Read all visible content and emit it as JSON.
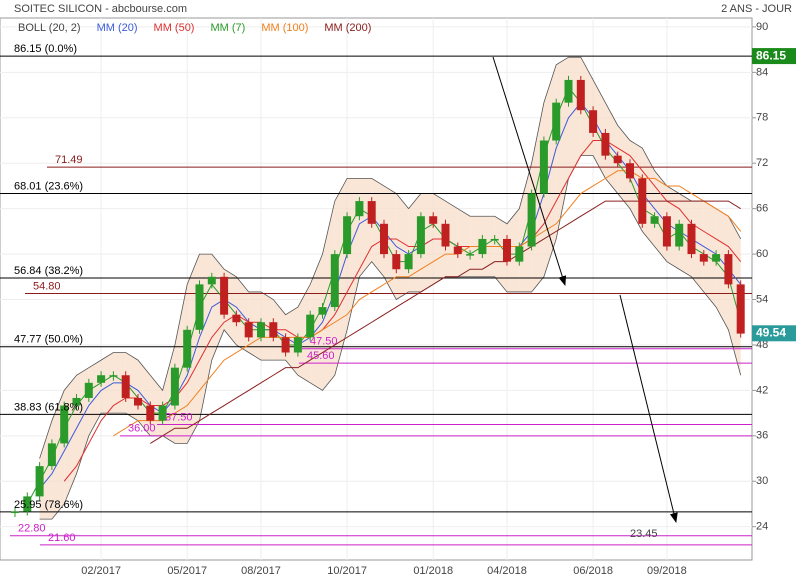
{
  "chart_data": {
    "type": "candlestick",
    "title": "SOITEC SILICON - abcbourse.com",
    "subtitle": "2 ANS - JOUR",
    "categories": [
      null,
      null,
      null,
      null,
      null,
      null,
      null,
      "02/2017",
      null,
      null,
      null,
      null,
      null,
      null,
      "05/2017",
      null,
      null,
      null,
      null,
      null,
      "08/2017",
      null,
      null,
      null,
      null,
      null,
      null,
      "10/2017",
      null,
      null,
      null,
      null,
      null,
      null,
      "01/2018",
      null,
      null,
      null,
      null,
      null,
      "04/2018",
      null,
      null,
      null,
      null,
      null,
      null,
      "06/2018",
      null,
      null,
      null,
      null,
      null,
      "09/2018",
      null,
      null,
      null,
      null,
      null,
      null
    ],
    "close": [
      26,
      28,
      32,
      35,
      40,
      41,
      43,
      44,
      44,
      41,
      40,
      38,
      40,
      45,
      50,
      56,
      57,
      52,
      51,
      49,
      51,
      49,
      47,
      49,
      52,
      53,
      60,
      65,
      67,
      64,
      60,
      58,
      60,
      65,
      64,
      61,
      60,
      60,
      62,
      62,
      59,
      61,
      68,
      75,
      80,
      83,
      79,
      76,
      73,
      72,
      70,
      64,
      65,
      61,
      64,
      60,
      59,
      60,
      56,
      49.5
    ],
    "bollinger": {
      "name": "BOLL (20, 2)",
      "color": "#555555",
      "upper": [
        null,
        null,
        33,
        38,
        42,
        44,
        45,
        46,
        47,
        47,
        46,
        44,
        42,
        48,
        56,
        60,
        60,
        58,
        57,
        55,
        55,
        54,
        52,
        53,
        56,
        60,
        67,
        70,
        70,
        70,
        69,
        68,
        66,
        68,
        68,
        67,
        66,
        65,
        65,
        65,
        64,
        66,
        72,
        80,
        85,
        86,
        86,
        83,
        80,
        77,
        75,
        74,
        71,
        69,
        68,
        67,
        67,
        66,
        65,
        62
      ],
      "lower": [
        null,
        null,
        25,
        25,
        27,
        31,
        36,
        39,
        39,
        39,
        38,
        36,
        36,
        35,
        35,
        38,
        46,
        50,
        48,
        47,
        46,
        46,
        46,
        44,
        43,
        42,
        44,
        50,
        57,
        59,
        57,
        54,
        55,
        55,
        56,
        57,
        57,
        57,
        57,
        57,
        55,
        55,
        55,
        57,
        62,
        70,
        73,
        73,
        70,
        68,
        66,
        63,
        61,
        59,
        58,
        57,
        55,
        53,
        50,
        44
      ]
    },
    "series": [
      {
        "name": "MM (20)",
        "color": "#3b5bdb",
        "values": [
          null,
          null,
          29,
          31,
          34,
          37,
          40,
          42,
          43,
          43,
          42,
          40,
          39,
          41,
          44,
          49,
          53,
          54,
          53,
          51,
          50,
          50,
          49,
          48,
          49,
          51,
          55,
          60,
          64,
          65,
          63,
          61,
          60,
          61,
          62,
          62,
          61,
          61,
          61,
          61,
          61,
          61,
          63,
          68,
          74,
          78,
          80,
          78,
          75,
          73,
          71,
          68,
          66,
          64,
          63,
          62,
          61,
          60,
          58,
          56
        ]
      },
      {
        "name": "MM (50)",
        "color": "#e03030",
        "values": [
          null,
          null,
          null,
          null,
          30,
          32,
          35,
          38,
          40,
          41,
          41,
          40,
          40,
          41,
          43,
          46,
          49,
          51,
          52,
          51,
          51,
          50,
          50,
          49,
          49,
          50,
          52,
          55,
          58,
          61,
          62,
          62,
          61,
          61,
          62,
          62,
          61,
          61,
          61,
          61,
          61,
          61,
          62,
          64,
          67,
          70,
          73,
          75,
          75,
          74,
          73,
          71,
          69,
          67,
          66,
          64,
          63,
          62,
          61,
          59
        ]
      },
      {
        "name": "MM (7)",
        "color": "#2a9a2a",
        "values": [
          null,
          27,
          30,
          33,
          37,
          40,
          42,
          43,
          44,
          43,
          41,
          39,
          39,
          42,
          47,
          53,
          56,
          54,
          52,
          50,
          50,
          50,
          48,
          48,
          50,
          53,
          58,
          63,
          66,
          65,
          62,
          59,
          59,
          63,
          64,
          62,
          61,
          60,
          61,
          62,
          60,
          60,
          66,
          73,
          78,
          82,
          80,
          77,
          74,
          72,
          70,
          66,
          65,
          62,
          63,
          61,
          60,
          59,
          57,
          51
        ]
      },
      {
        "name": "MM (100)",
        "color": "#f08020",
        "values": [
          null,
          null,
          null,
          null,
          null,
          null,
          null,
          null,
          36,
          37,
          38,
          38,
          38,
          39,
          40,
          42,
          44,
          46,
          47,
          48,
          49,
          49,
          49,
          49,
          49,
          50,
          51,
          52,
          54,
          55,
          56,
          57,
          57,
          58,
          59,
          60,
          60,
          61,
          61,
          61,
          61,
          61,
          62,
          63,
          64,
          66,
          68,
          69,
          70,
          71,
          71,
          70,
          70,
          69,
          69,
          68,
          67,
          66,
          65,
          63
        ]
      },
      {
        "name": "MM (200)",
        "color": "#8b2020",
        "values": [
          null,
          null,
          null,
          null,
          null,
          null,
          null,
          null,
          null,
          null,
          null,
          35,
          36,
          37,
          37,
          38,
          39,
          40,
          41,
          42,
          43,
          44,
          45,
          45,
          46,
          47,
          48,
          49,
          50,
          51,
          52,
          53,
          54,
          55,
          56,
          57,
          57,
          58,
          58,
          59,
          59,
          60,
          61,
          62,
          63,
          64,
          65,
          66,
          67,
          67,
          67,
          67,
          67,
          67,
          67,
          67,
          67,
          67,
          67,
          66
        ]
      }
    ],
    "up_color": "#2a9a2a",
    "down_color": "#c02020",
    "ylim": [
      19.6,
      92.5
    ],
    "yticks": [
      24,
      30,
      36,
      42,
      48,
      54,
      60,
      66,
      72,
      78,
      84,
      90
    ],
    "grid": true,
    "levels": [
      {
        "value": 86.15,
        "label": "86.15 (0.0%)",
        "color": "#000000"
      },
      {
        "value": 68.01,
        "label": "68.01 (23.6%)",
        "color": "#000000"
      },
      {
        "value": 56.84,
        "label": "56.84 (38.2%)",
        "color": "#000000"
      },
      {
        "value": 47.77,
        "label": "47.77 (50.0%)",
        "color": "#000000"
      },
      {
        "value": 38.83,
        "label": "38.83 (61.8%)",
        "color": "#000000"
      },
      {
        "value": 25.95,
        "label": "25.95 (78.6%)",
        "color": "#000000"
      },
      {
        "value": 71.49,
        "label": "71.49",
        "color": "#8b1a1a"
      },
      {
        "value": 54.8,
        "label": "54.80",
        "color": "#8b1a1a"
      },
      {
        "value": 47.5,
        "label": "47.50",
        "color": "#cc22cc"
      },
      {
        "value": 45.6,
        "label": "45.60",
        "color": "#cc22cc"
      },
      {
        "value": 37.5,
        "label": "37.50",
        "color": "#cc22cc"
      },
      {
        "value": 36,
        "label": "36.00",
        "color": "#cc22cc"
      },
      {
        "value": 22.8,
        "label": "22.80",
        "color": "#cc22cc"
      },
      {
        "value": 21.6,
        "label": "21.60",
        "color": "#cc22cc"
      }
    ],
    "badges": [
      {
        "value": 86.15,
        "color": "#1a8a1a"
      },
      {
        "value": 49.54,
        "color": "#2a9a9a"
      }
    ],
    "target": 23.45
  }
}
